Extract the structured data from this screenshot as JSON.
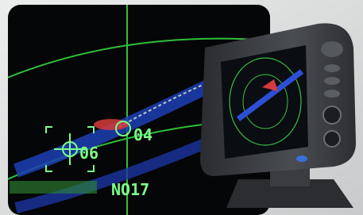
{
  "radar_display": {
    "targets": [
      {
        "label": "04"
      },
      {
        "label": "06"
      }
    ],
    "status_text": "NO17"
  }
}
